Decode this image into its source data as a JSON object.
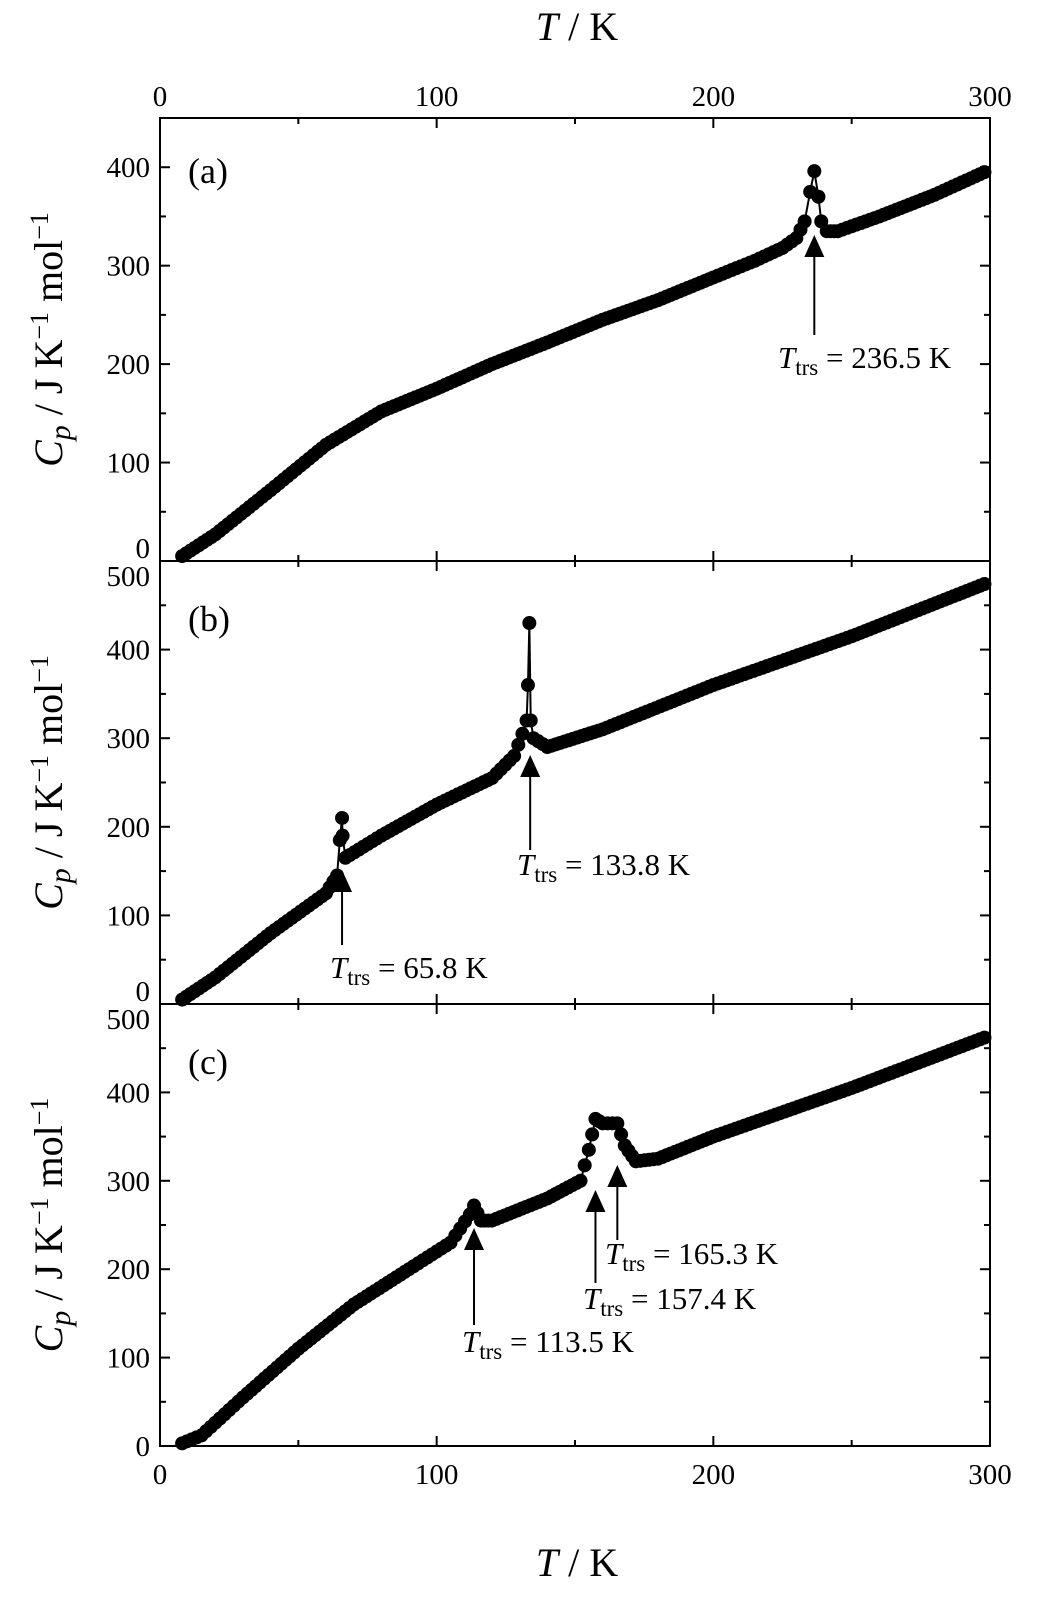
{
  "chart_data": {
    "type": "scatter",
    "x_axis": {
      "label_symbol": "T",
      "label_unit": "K",
      "lim": [
        0,
        300
      ],
      "ticks": [
        "0",
        "100",
        "200",
        "300"
      ]
    },
    "y_axis_label": {
      "symbol": "C",
      "sub": "p",
      "unit_text": "J K",
      "exp1": "−1",
      "mol": " mol",
      "exp2": "−1"
    },
    "marker_color": "#000000",
    "panels": [
      {
        "label": "(a)",
        "ylim": [
          0,
          450
        ],
        "yticks": [
          "0",
          "100",
          "200",
          "300",
          "400"
        ],
        "points": [
          [
            8,
            5
          ],
          [
            20,
            27
          ],
          [
            40,
            72
          ],
          [
            60,
            118
          ],
          [
            80,
            152
          ],
          [
            100,
            175
          ],
          [
            120,
            200
          ],
          [
            140,
            222
          ],
          [
            160,
            245
          ],
          [
            180,
            265
          ],
          [
            200,
            288
          ],
          [
            215,
            305
          ],
          [
            225,
            318
          ],
          [
            230,
            328
          ],
          [
            233,
            345
          ],
          [
            235,
            375
          ],
          [
            236.5,
            396
          ],
          [
            238,
            370
          ],
          [
            239,
            345
          ],
          [
            241,
            335
          ],
          [
            245,
            335
          ],
          [
            260,
            350
          ],
          [
            280,
            372
          ],
          [
            298,
            395
          ]
        ],
        "annotations": [
          {
            "T": 236.5,
            "text": "= 236.5 K",
            "sym": "T",
            "sub": "trs"
          }
        ]
      },
      {
        "label": "(b)",
        "ylim": [
          0,
          500
        ],
        "yticks": [
          "0",
          "100",
          "200",
          "300",
          "400",
          "500"
        ],
        "points": [
          [
            8,
            5
          ],
          [
            20,
            30
          ],
          [
            40,
            80
          ],
          [
            60,
            125
          ],
          [
            64,
            145
          ],
          [
            65,
            185
          ],
          [
            65.8,
            210
          ],
          [
            66,
            190
          ],
          [
            67,
            165
          ],
          [
            80,
            190
          ],
          [
            100,
            225
          ],
          [
            120,
            255
          ],
          [
            128,
            280
          ],
          [
            131,
            305
          ],
          [
            132.5,
            320
          ],
          [
            133,
            360
          ],
          [
            133.5,
            430
          ],
          [
            134,
            320
          ],
          [
            135,
            300
          ],
          [
            140,
            290
          ],
          [
            160,
            310
          ],
          [
            200,
            360
          ],
          [
            250,
            415
          ],
          [
            298,
            474
          ]
        ],
        "annotations": [
          {
            "T": 65.8,
            "text": "= 65.8 K",
            "sym": "T",
            "sub": "trs"
          },
          {
            "T": 133.8,
            "text": "= 133.8 K",
            "sym": "T",
            "sub": "trs"
          }
        ]
      },
      {
        "label": "(c)",
        "ylim": [
          0,
          500
        ],
        "yticks": [
          "0",
          "100",
          "200",
          "300",
          "400",
          "500"
        ],
        "points": [
          [
            8,
            3
          ],
          [
            15,
            12
          ],
          [
            30,
            55
          ],
          [
            50,
            110
          ],
          [
            70,
            160
          ],
          [
            90,
            200
          ],
          [
            105,
            230
          ],
          [
            112,
            262
          ],
          [
            113.5,
            272
          ],
          [
            116,
            255
          ],
          [
            120,
            255
          ],
          [
            140,
            280
          ],
          [
            152,
            300
          ],
          [
            155,
            335
          ],
          [
            157.4,
            370
          ],
          [
            160,
            365
          ],
          [
            165.3,
            365
          ],
          [
            168,
            340
          ],
          [
            172,
            322
          ],
          [
            180,
            325
          ],
          [
            200,
            350
          ],
          [
            250,
            405
          ],
          [
            298,
            462
          ]
        ],
        "annotations": [
          {
            "T": 113.5,
            "text": "= 113.5 K",
            "sym": "T",
            "sub": "trs"
          },
          {
            "T": 157.4,
            "text": "= 157.4 K",
            "sym": "T",
            "sub": "trs"
          },
          {
            "T": 165.3,
            "text": "= 165.3 K",
            "sym": "T",
            "sub": "trs"
          }
        ]
      }
    ]
  }
}
